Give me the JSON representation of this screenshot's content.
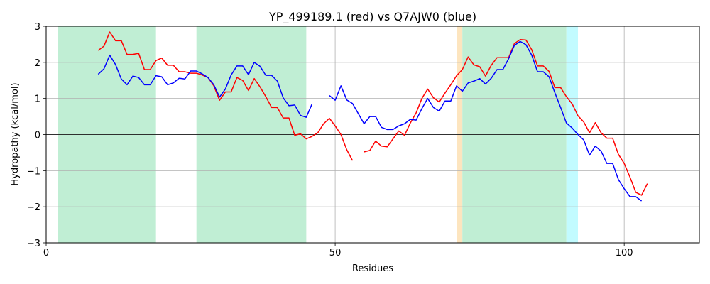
{
  "chart_data": {
    "type": "line",
    "title": "YP_499189.1 (red) vs Q7AJW0 (blue)",
    "xlabel": "Residues",
    "ylabel": "Hydropathy (kcal/mol)",
    "xlim": [
      0,
      113
    ],
    "ylim": [
      -3,
      3
    ],
    "xticks": [
      0,
      50,
      100
    ],
    "yticks": [
      -3,
      -2,
      -1,
      0,
      1,
      2,
      3
    ],
    "grid": true,
    "zero_line": true,
    "regions": [
      {
        "start": 2,
        "end": 19,
        "color": "#c0eed4"
      },
      {
        "start": 26,
        "end": 45,
        "color": "#c0eed4"
      },
      {
        "start": 71,
        "end": 72,
        "color": "#fde5bf"
      },
      {
        "start": 72,
        "end": 90,
        "color": "#c0eed4"
      },
      {
        "start": 90,
        "end": 92,
        "color": "#c2fbff"
      }
    ],
    "series": [
      {
        "color": "#ff0000",
        "segments": [
          [
            [
              9,
              2.33
            ],
            [
              10,
              2.45
            ],
            [
              11,
              2.84
            ],
            [
              12,
              2.6
            ],
            [
              13,
              2.6
            ],
            [
              14,
              2.22
            ],
            [
              15,
              2.22
            ],
            [
              16,
              2.25
            ],
            [
              17,
              1.8
            ],
            [
              18,
              1.8
            ],
            [
              19,
              2.05
            ],
            [
              20,
              2.12
            ],
            [
              21,
              1.92
            ],
            [
              22,
              1.92
            ],
            [
              23,
              1.74
            ],
            [
              24,
              1.74
            ],
            [
              25,
              1.7
            ],
            [
              26,
              1.7
            ],
            [
              27,
              1.65
            ],
            [
              28,
              1.58
            ],
            [
              29,
              1.35
            ],
            [
              30,
              0.95
            ],
            [
              31,
              1.18
            ],
            [
              32,
              1.18
            ],
            [
              33,
              1.58
            ],
            [
              34,
              1.5
            ],
            [
              35,
              1.22
            ],
            [
              36,
              1.55
            ],
            [
              37,
              1.32
            ],
            [
              38,
              1.05
            ],
            [
              39,
              0.75
            ],
            [
              40,
              0.75
            ],
            [
              41,
              0.46
            ],
            [
              42,
              0.46
            ],
            [
              43,
              -0.02
            ],
            [
              44,
              0.02
            ],
            [
              45,
              -0.12
            ],
            [
              46,
              -0.05
            ],
            [
              47,
              0.05
            ],
            [
              48,
              0.3
            ],
            [
              49,
              0.45
            ],
            [
              50,
              0.24
            ],
            [
              51,
              0.0
            ],
            [
              52,
              -0.42
            ],
            [
              53,
              -0.72
            ]
          ],
          [
            [
              55,
              -0.48
            ],
            [
              56,
              -0.44
            ],
            [
              57,
              -0.18
            ],
            [
              58,
              -0.32
            ],
            [
              59,
              -0.34
            ],
            [
              60,
              -0.12
            ],
            [
              61,
              0.1
            ],
            [
              62,
              -0.02
            ],
            [
              63,
              0.32
            ],
            [
              64,
              0.6
            ],
            [
              65,
              1.0
            ],
            [
              66,
              1.26
            ],
            [
              67,
              1.02
            ],
            [
              68,
              0.9
            ],
            [
              69,
              1.15
            ],
            [
              70,
              1.38
            ],
            [
              71,
              1.63
            ],
            [
              72,
              1.8
            ],
            [
              73,
              2.15
            ],
            [
              74,
              1.93
            ],
            [
              75,
              1.88
            ],
            [
              76,
              1.62
            ],
            [
              77,
              1.92
            ],
            [
              78,
              2.13
            ],
            [
              79,
              2.13
            ],
            [
              80,
              2.13
            ],
            [
              81,
              2.52
            ],
            [
              82,
              2.63
            ],
            [
              83,
              2.62
            ],
            [
              84,
              2.35
            ],
            [
              85,
              1.9
            ],
            [
              86,
              1.9
            ],
            [
              87,
              1.75
            ],
            [
              88,
              1.3
            ],
            [
              89,
              1.3
            ],
            [
              90,
              1.05
            ],
            [
              91,
              0.85
            ],
            [
              92,
              0.52
            ],
            [
              93,
              0.35
            ],
            [
              94,
              0.05
            ],
            [
              95,
              0.33
            ],
            [
              96,
              0.05
            ],
            [
              97,
              -0.1
            ],
            [
              98,
              -0.1
            ],
            [
              99,
              -0.55
            ],
            [
              100,
              -0.8
            ],
            [
              101,
              -1.18
            ],
            [
              102,
              -1.6
            ],
            [
              103,
              -1.68
            ],
            [
              104,
              -1.36
            ]
          ]
        ]
      },
      {
        "color": "#0000ff",
        "segments": [
          [
            [
              9,
              1.67
            ],
            [
              10,
              1.82
            ],
            [
              11,
              2.2
            ],
            [
              12,
              1.94
            ],
            [
              13,
              1.54
            ],
            [
              14,
              1.38
            ],
            [
              15,
              1.62
            ],
            [
              16,
              1.58
            ],
            [
              17,
              1.38
            ],
            [
              18,
              1.38
            ],
            [
              19,
              1.63
            ],
            [
              20,
              1.6
            ],
            [
              21,
              1.38
            ],
            [
              22,
              1.43
            ],
            [
              23,
              1.56
            ],
            [
              24,
              1.54
            ],
            [
              25,
              1.76
            ],
            [
              26,
              1.76
            ],
            [
              27,
              1.68
            ],
            [
              28,
              1.58
            ],
            [
              29,
              1.38
            ],
            [
              30,
              1.04
            ],
            [
              31,
              1.26
            ],
            [
              32,
              1.65
            ],
            [
              33,
              1.9
            ],
            [
              34,
              1.9
            ],
            [
              35,
              1.66
            ],
            [
              36,
              2.0
            ],
            [
              37,
              1.89
            ],
            [
              38,
              1.64
            ],
            [
              39,
              1.64
            ],
            [
              40,
              1.48
            ],
            [
              41,
              1.02
            ],
            [
              42,
              0.8
            ],
            [
              43,
              0.82
            ],
            [
              44,
              0.53
            ],
            [
              45,
              0.48
            ],
            [
              46,
              0.85
            ]
          ],
          [
            [
              49,
              1.08
            ],
            [
              50,
              0.95
            ],
            [
              51,
              1.35
            ],
            [
              52,
              0.96
            ],
            [
              53,
              0.86
            ],
            [
              54,
              0.58
            ],
            [
              55,
              0.3
            ],
            [
              56,
              0.5
            ],
            [
              57,
              0.5
            ],
            [
              58,
              0.2
            ],
            [
              59,
              0.14
            ],
            [
              60,
              0.14
            ],
            [
              61,
              0.24
            ],
            [
              62,
              0.3
            ],
            [
              63,
              0.42
            ],
            [
              64,
              0.4
            ],
            [
              65,
              0.72
            ],
            [
              66,
              1.0
            ],
            [
              67,
              0.75
            ],
            [
              68,
              0.65
            ],
            [
              69,
              0.93
            ],
            [
              70,
              0.93
            ],
            [
              71,
              1.35
            ],
            [
              72,
              1.2
            ],
            [
              73,
              1.43
            ],
            [
              74,
              1.48
            ],
            [
              75,
              1.55
            ],
            [
              76,
              1.4
            ],
            [
              77,
              1.56
            ],
            [
              78,
              1.8
            ],
            [
              79,
              1.8
            ],
            [
              80,
              2.1
            ],
            [
              81,
              2.47
            ],
            [
              82,
              2.58
            ],
            [
              83,
              2.49
            ],
            [
              84,
              2.2
            ],
            [
              85,
              1.74
            ],
            [
              86,
              1.74
            ],
            [
              87,
              1.6
            ],
            [
              88,
              1.16
            ],
            [
              89,
              0.75
            ],
            [
              90,
              0.32
            ],
            [
              91,
              0.18
            ],
            [
              92,
              0.0
            ],
            [
              93,
              -0.15
            ],
            [
              94,
              -0.57
            ],
            [
              95,
              -0.32
            ],
            [
              96,
              -0.46
            ],
            [
              97,
              -0.8
            ],
            [
              98,
              -0.8
            ],
            [
              99,
              -1.25
            ],
            [
              100,
              -1.5
            ],
            [
              101,
              -1.72
            ],
            [
              102,
              -1.72
            ],
            [
              103,
              -1.84
            ]
          ]
        ]
      }
    ]
  }
}
